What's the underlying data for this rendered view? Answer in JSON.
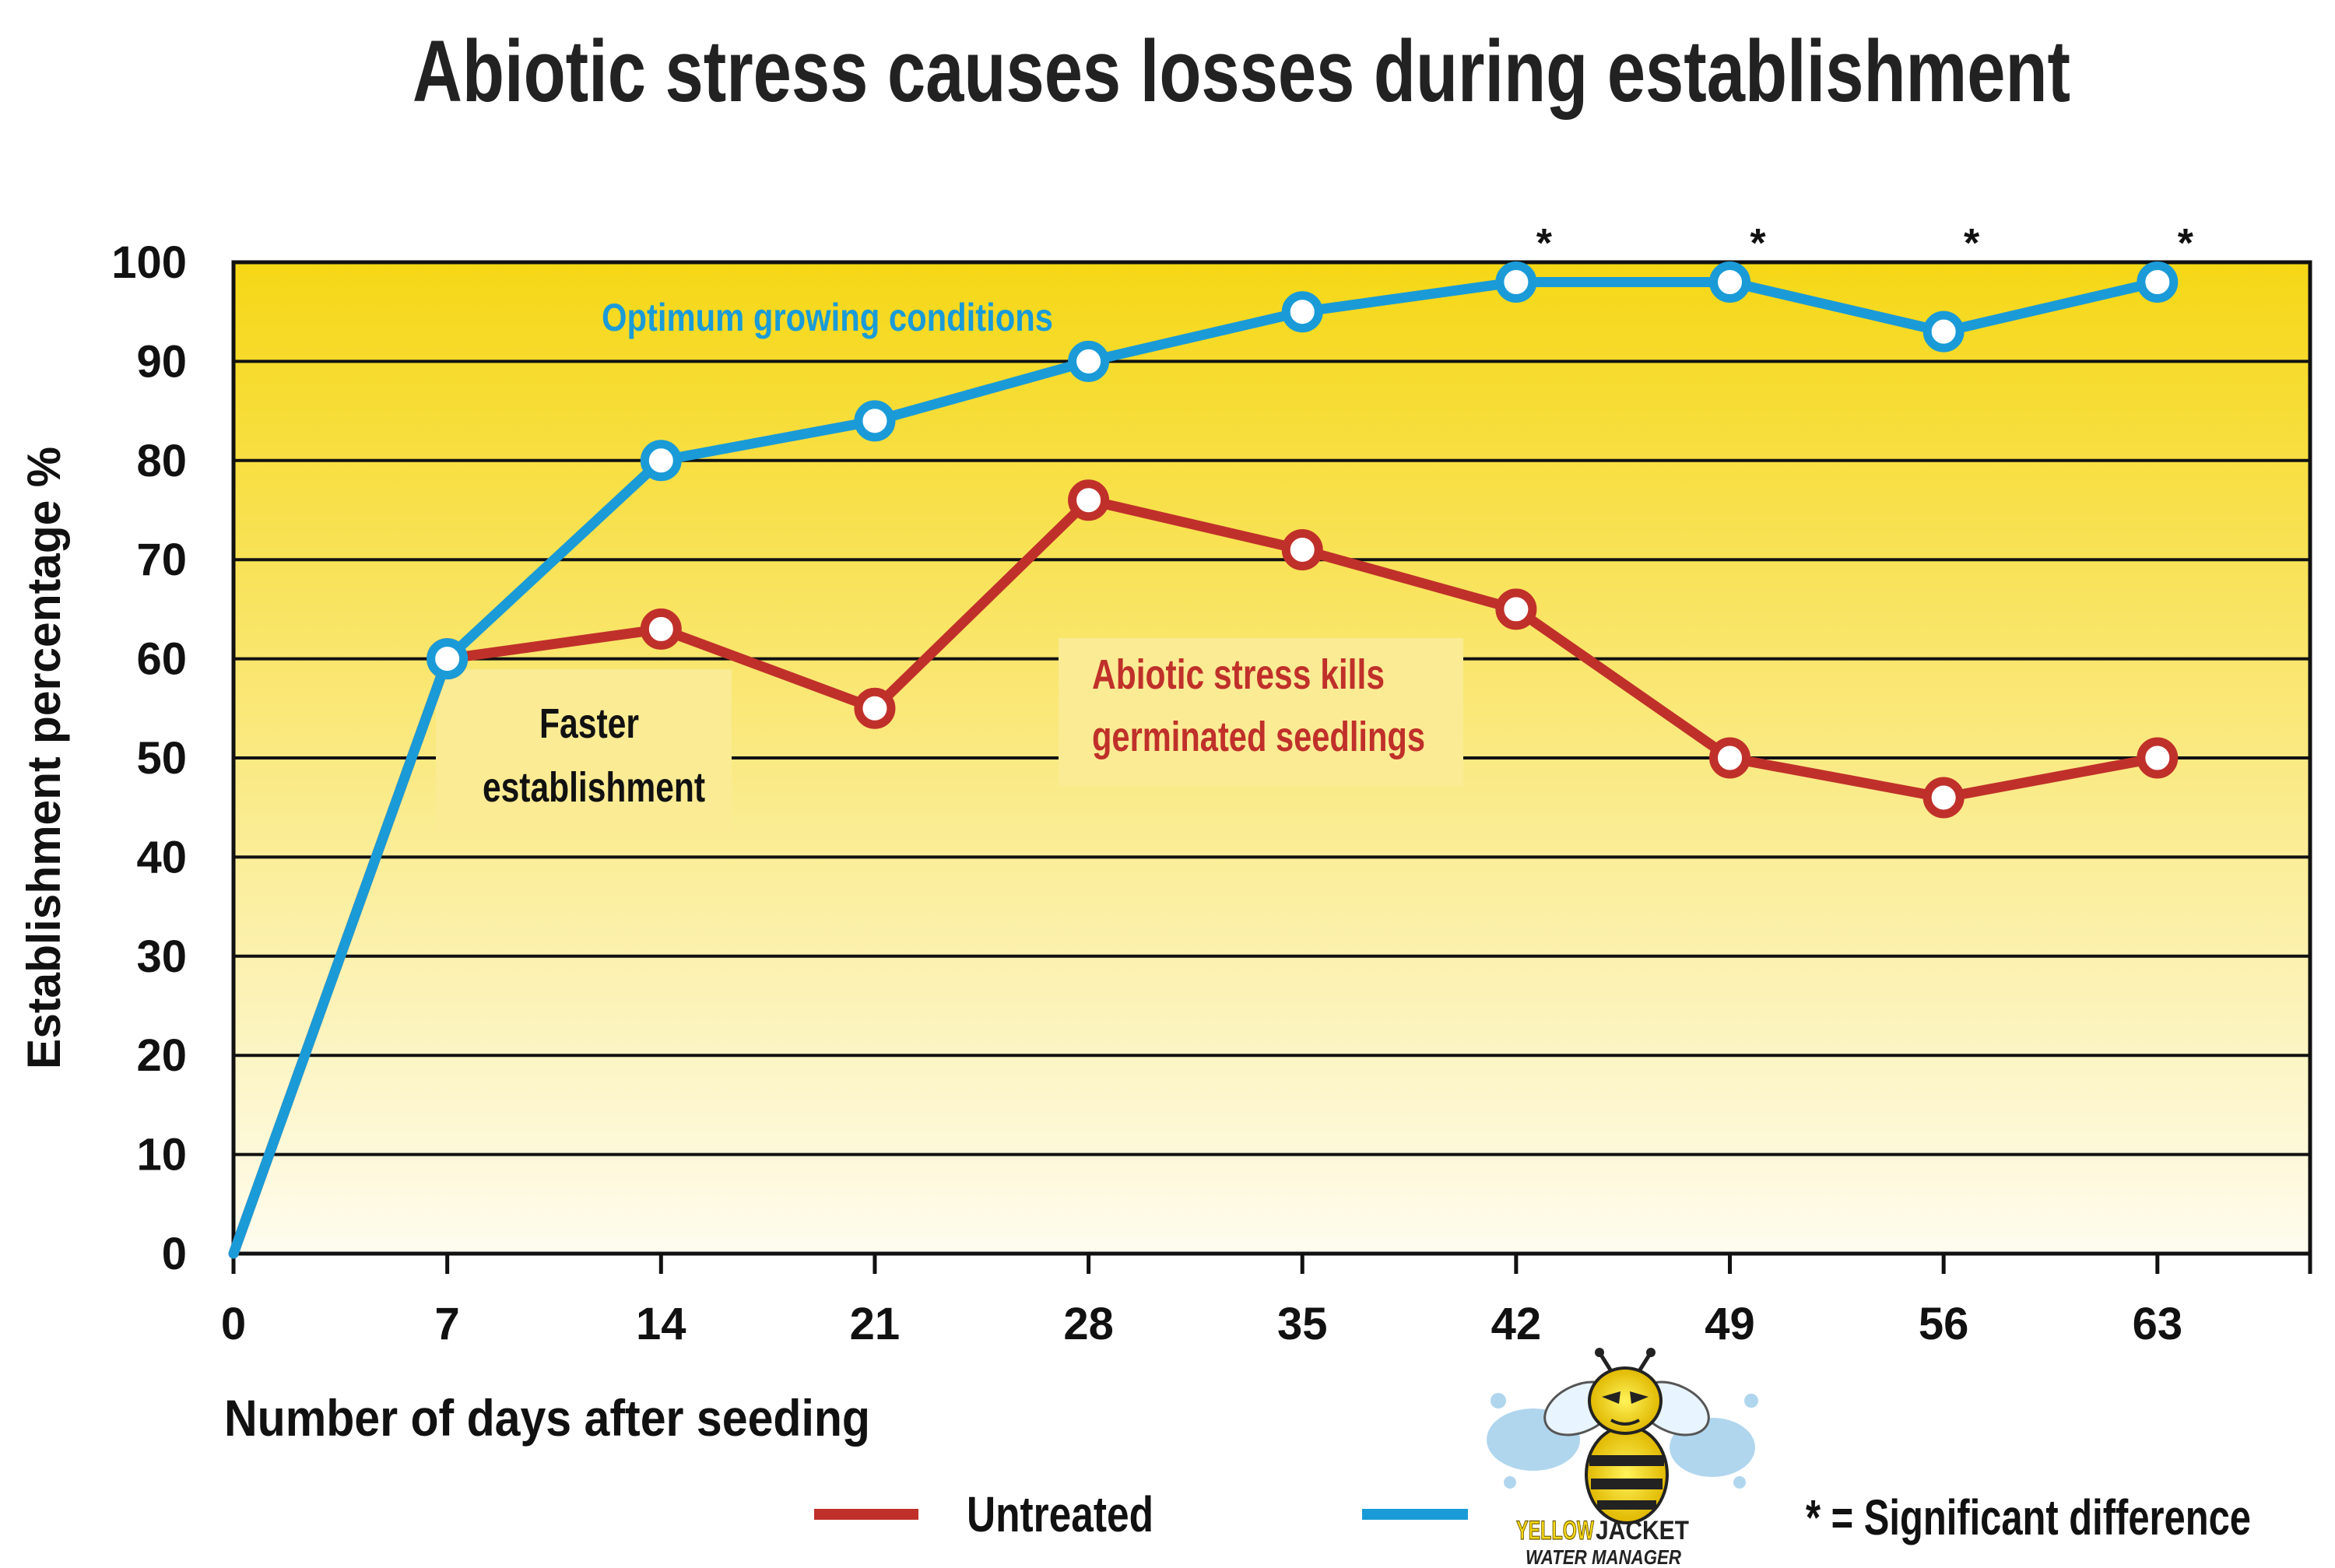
{
  "chart_data": {
    "type": "line",
    "title": "Abiotic stress causes losses during establishment",
    "xlabel": "Number of days after seeding",
    "ylabel": "Establishment percentage %",
    "x": [
      0,
      7,
      14,
      21,
      28,
      35,
      42,
      49,
      56,
      63
    ],
    "xlim": [
      0,
      68
    ],
    "ylim": [
      0,
      100
    ],
    "yticks": [
      0,
      10,
      20,
      30,
      40,
      50,
      60,
      70,
      80,
      90,
      100
    ],
    "series": [
      {
        "name": "Untreated",
        "color": "#c0302a",
        "x": [
          0,
          7,
          14,
          21,
          28,
          35,
          42,
          49,
          56,
          63
        ],
        "values": [
          0,
          60,
          63,
          55,
          76,
          71,
          65,
          50,
          46,
          50
        ]
      },
      {
        "name": "Yellow Jacket Water Manager",
        "color": "#1a9bd7",
        "x": [
          0,
          7,
          14,
          21,
          28,
          35,
          42,
          49,
          56,
          63
        ],
        "values": [
          0,
          60,
          80,
          84,
          90,
          95,
          98,
          98,
          93,
          98
        ]
      }
    ],
    "significant_x": [
      42,
      49,
      56,
      63
    ],
    "annotations": {
      "optimum": "Optimum growing conditions",
      "faster_line1": "Faster",
      "faster_line2": "establishment",
      "abiotic_line1": "Abiotic stress kills",
      "abiotic_line2": "germinated seedlings",
      "asterisk": "*"
    },
    "legend": {
      "untreated_label": "Untreated",
      "treated_logo_brand_a": "YELLOW",
      "treated_logo_brand_b": "JACKET",
      "treated_logo_sub": "WATER MANAGER",
      "significance_note": "* = Significant difference"
    },
    "colors": {
      "background_top": "#f6d716",
      "background_bottom": "#fefcef",
      "grid": "#111111"
    }
  }
}
